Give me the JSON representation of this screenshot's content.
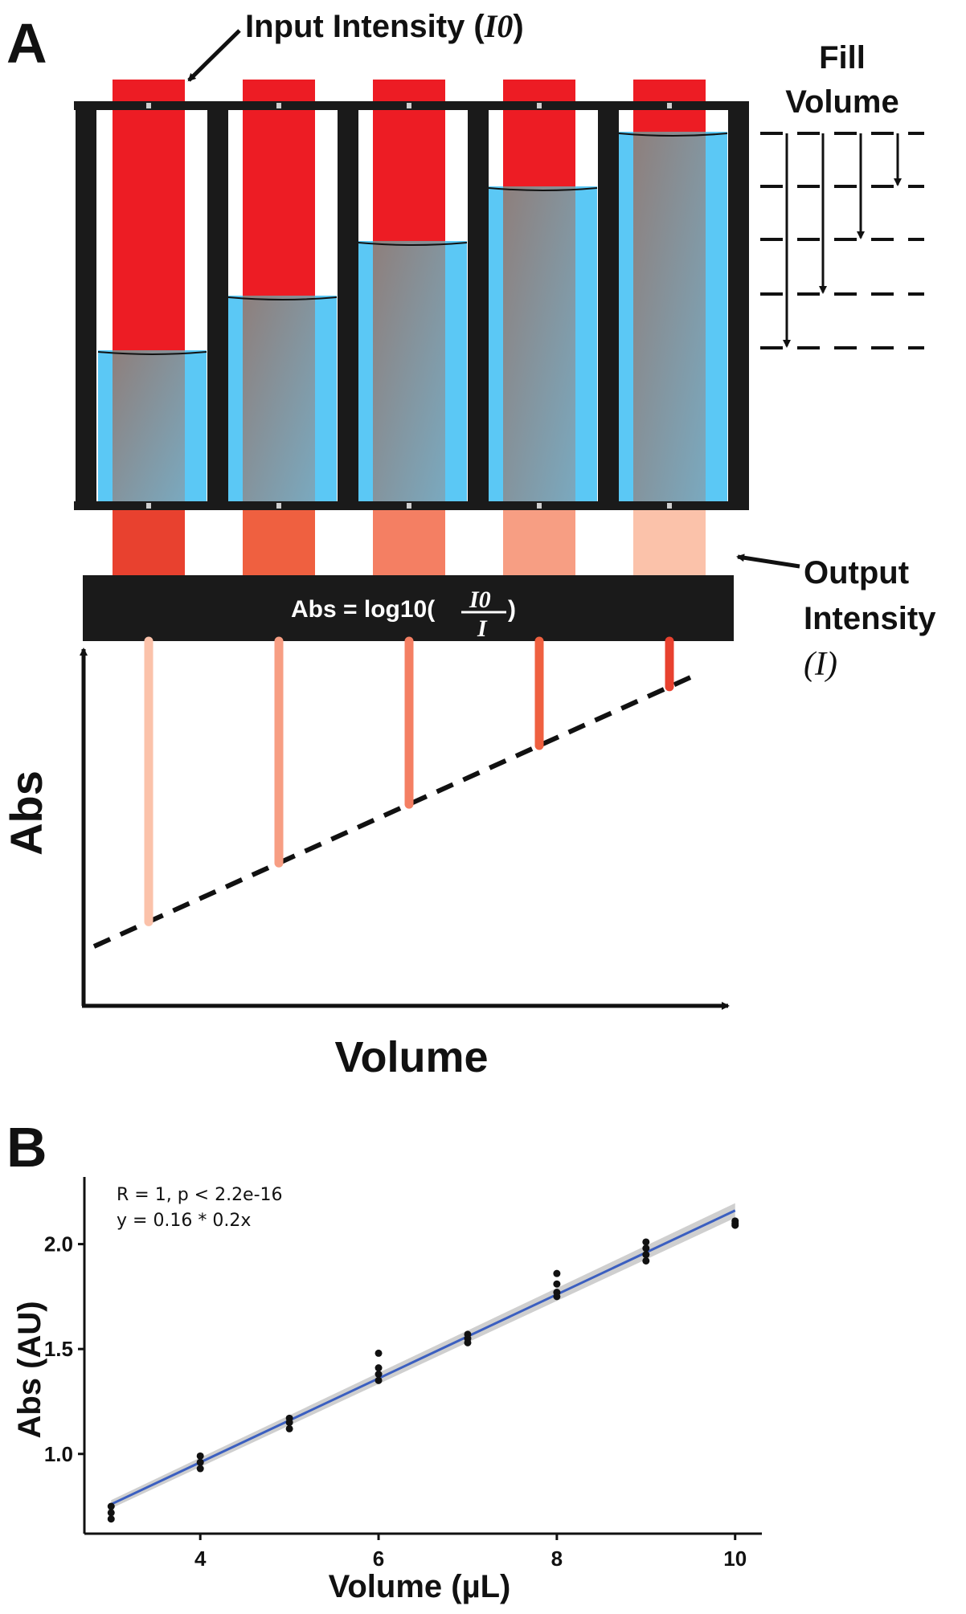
{
  "panel_a": {
    "label": "A",
    "input_label": "Input Intensity (",
    "input_symbol": "I0",
    "input_close": ")",
    "fill_volume_line1": "Fill",
    "fill_volume_line2": "Volume",
    "output_line1": "Output",
    "output_line2": "Intensity",
    "output_symbol": "(I)",
    "formula_prefix": "Abs = log10(",
    "formula_numerator": "I0",
    "formula_denominator": "I",
    "formula_suffix": ")",
    "axis_y_label": "Abs",
    "axis_x_label": "Volume",
    "tube_count": 5,
    "colors": {
      "input_red": "#ed1c24",
      "liquid_blue": "#5bc8f5",
      "frame": "#1a1a1a",
      "output": [
        "#e8412f",
        "#ef6040",
        "#f47f63",
        "#f79e83",
        "#fbc2aa"
      ],
      "stems": [
        "#fbc2aa",
        "#f79e83",
        "#f47f63",
        "#ef6040",
        "#e8412f"
      ]
    }
  },
  "panel_b": {
    "label": "B",
    "stat_line1": "R = 1, p < 2.2e-16",
    "stat_line2": "y = 0.16 * 0.2x",
    "xlabel": "Volume (µL)",
    "ylabel": "Abs (AU)",
    "chart_data": {
      "type": "scatter",
      "title": "",
      "xlabel": "Volume (µL)",
      "ylabel": "Abs (AU)",
      "xlim": [
        2.7,
        10.3
      ],
      "ylim": [
        0.62,
        2.32
      ],
      "xticks": [
        4,
        6,
        8,
        10
      ],
      "yticks": [
        1.0,
        1.5,
        2.0
      ],
      "x": [
        3,
        3,
        3,
        4,
        4,
        4,
        5,
        5,
        5,
        6,
        6,
        6,
        6,
        7,
        7,
        7,
        8,
        8,
        8,
        8,
        9,
        9,
        9,
        9,
        10,
        10,
        10
      ],
      "y": [
        0.75,
        0.72,
        0.69,
        0.99,
        0.96,
        0.93,
        1.17,
        1.15,
        1.12,
        1.48,
        1.41,
        1.38,
        1.35,
        1.57,
        1.55,
        1.53,
        1.86,
        1.81,
        1.77,
        1.75,
        2.01,
        1.98,
        1.95,
        1.92,
        2.11,
        2.1,
        2.09
      ],
      "fit": {
        "slope": 0.2,
        "intercept": 0.16,
        "xrange": [
          3,
          10
        ],
        "line_color": "#3b5fc0",
        "band_color": "#bfbfbf"
      },
      "grid": false,
      "legend": "none"
    }
  }
}
